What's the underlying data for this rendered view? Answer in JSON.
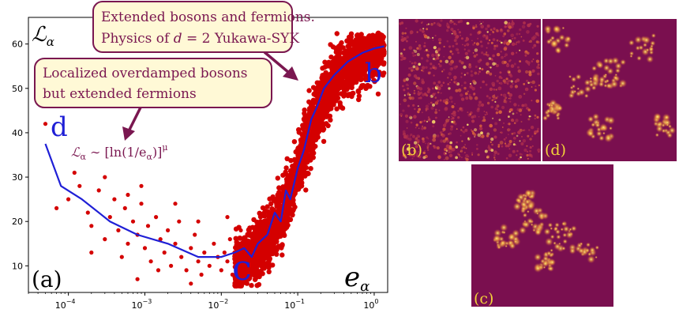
{
  "chart_data": {
    "type": "scatter",
    "x_scale": "log",
    "xlim": [
      3e-05,
      1.5
    ],
    "ylim": [
      4,
      66
    ],
    "x_ticks": [
      0.0001,
      0.001,
      0.01,
      0.1,
      1
    ],
    "x_tick_labels": [
      {
        "base": "10",
        "exp": "−4"
      },
      {
        "base": "10",
        "exp": "−3"
      },
      {
        "base": "10",
        "exp": "−2"
      },
      {
        "base": "10",
        "exp": "−1"
      },
      {
        "base": "10",
        "exp": "0"
      }
    ],
    "y_ticks": [
      10,
      20,
      30,
      40,
      50,
      60
    ],
    "y_tick_labels": [
      "10",
      "20",
      "30",
      "40",
      "50",
      "60"
    ],
    "ylabel": "ℒ",
    "ylabel_sub": "α",
    "xlabel": "e",
    "xlabel_sub": "α",
    "panel_label": "(a)",
    "scatter_color": "#d40000",
    "line_color": "#1f1fd6",
    "scatter_sparse": [
      [
        5e-05,
        42
      ],
      [
        7e-05,
        23
      ],
      [
        0.0001,
        25
      ],
      [
        0.00012,
        31
      ],
      [
        0.00014,
        28
      ],
      [
        0.00018,
        22
      ],
      [
        0.0002,
        19
      ],
      [
        0.00025,
        27
      ],
      [
        0.0003,
        16
      ],
      [
        0.00035,
        21
      ],
      [
        0.0004,
        25
      ],
      [
        0.00045,
        18
      ],
      [
        0.0005,
        12
      ],
      [
        0.00055,
        23
      ],
      [
        0.0006,
        15
      ],
      [
        0.0007,
        20
      ],
      [
        0.0008,
        17
      ],
      [
        0.0009,
        24
      ],
      [
        0.001,
        14
      ],
      [
        0.0011,
        19
      ],
      [
        0.0012,
        11
      ],
      [
        0.0014,
        21
      ],
      [
        0.0016,
        16
      ],
      [
        0.0018,
        13
      ],
      [
        0.002,
        18
      ],
      [
        0.0022,
        10
      ],
      [
        0.0025,
        15
      ],
      [
        0.0028,
        20
      ],
      [
        0.003,
        12
      ],
      [
        0.0035,
        9
      ],
      [
        0.004,
        14
      ],
      [
        0.0045,
        17
      ],
      [
        0.005,
        11
      ],
      [
        0.0055,
        8
      ],
      [
        0.006,
        13
      ],
      [
        0.007,
        10
      ],
      [
        0.008,
        15
      ],
      [
        0.009,
        12
      ],
      [
        0.01,
        9
      ],
      [
        0.011,
        13
      ],
      [
        0.012,
        11
      ],
      [
        0.013,
        16
      ],
      [
        0.014,
        8
      ],
      [
        0.016,
        12
      ],
      [
        0.018,
        18
      ],
      [
        0.0003,
        30
      ],
      [
        0.0006,
        26
      ],
      [
        0.0015,
        9
      ],
      [
        0.0025,
        24
      ],
      [
        0.005,
        20
      ],
      [
        0.0002,
        13
      ],
      [
        0.0008,
        7
      ],
      [
        0.004,
        6
      ],
      [
        0.0009,
        28
      ],
      [
        0.012,
        21
      ]
    ],
    "scatter_band": {
      "x_start": 0.015,
      "x_end": 1.35,
      "profile": [
        [
          0.015,
          10
        ],
        [
          0.02,
          11
        ],
        [
          0.03,
          13
        ],
        [
          0.05,
          18
        ],
        [
          0.07,
          24
        ],
        [
          0.1,
          32
        ],
        [
          0.15,
          41
        ],
        [
          0.2,
          47
        ],
        [
          0.3,
          52
        ],
        [
          0.5,
          56
        ],
        [
          0.8,
          58
        ],
        [
          1.0,
          59
        ],
        [
          1.35,
          60
        ]
      ],
      "spread": 7
    },
    "mean_line": [
      [
        5e-05,
        37.5
      ],
      [
        8e-05,
        28
      ],
      [
        0.00015,
        25
      ],
      [
        0.00035,
        20
      ],
      [
        0.0008,
        17
      ],
      [
        0.002,
        15
      ],
      [
        0.005,
        12
      ],
      [
        0.01,
        12
      ],
      [
        0.015,
        13
      ],
      [
        0.02,
        14
      ],
      [
        0.025,
        12
      ],
      [
        0.03,
        15
      ],
      [
        0.04,
        17
      ],
      [
        0.05,
        22
      ],
      [
        0.06,
        20
      ],
      [
        0.07,
        27
      ],
      [
        0.08,
        25
      ],
      [
        0.1,
        32
      ],
      [
        0.12,
        36
      ],
      [
        0.15,
        43
      ],
      [
        0.18,
        46
      ],
      [
        0.22,
        50
      ],
      [
        0.3,
        53
      ],
      [
        0.45,
        56
      ],
      [
        0.7,
        58
      ],
      [
        1.0,
        59
      ],
      [
        1.35,
        59.5
      ]
    ]
  },
  "annotations": {
    "callout_top_line1": "Extended bosons and fermions.",
    "callout_top_line2_pre": "Physics of ",
    "callout_top_line2_var": "d",
    "callout_top_line2_post": " = 2 Yukawa-SYK",
    "callout_left_line1": "Localized overdamped bosons",
    "callout_left_line2": "but extended fermions",
    "formula_lhs": "ℒ",
    "formula_lhs_sub": "α",
    "formula_rhs": " ∼ [ln(1/e",
    "formula_rhs_sub": "α",
    "formula_close": ")]",
    "formula_exp": "μ",
    "letter_d": "d",
    "letter_b": "b",
    "letter_c": "c",
    "callout_fill": "#fff9d6",
    "callout_stroke": "#7a1750"
  },
  "heatmaps": {
    "background_color": "#7a0f4f",
    "label_b": "(b)",
    "label_d": "(d)",
    "label_c": "(c)"
  }
}
